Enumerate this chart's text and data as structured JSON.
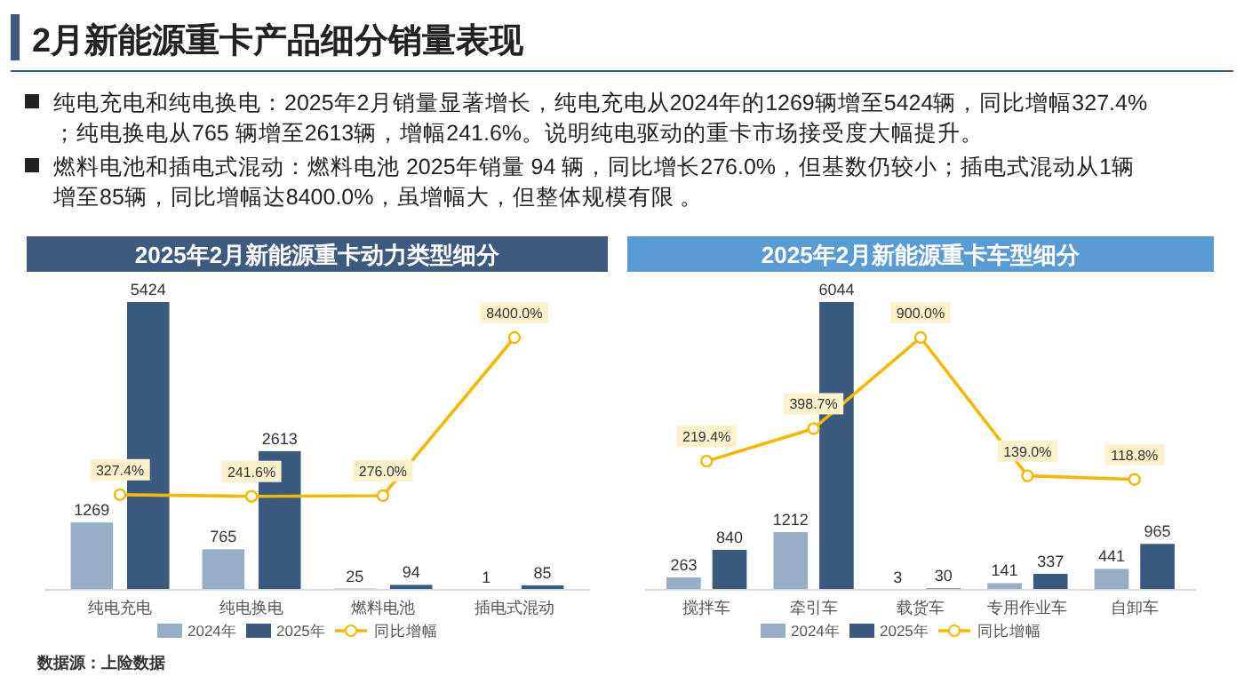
{
  "chart_data": [
    {
      "type": "other",
      "title": "2月新能源重卡产品细分销量表现",
      "annotations": [
        "纯电充电和纯电换电：2025年2月销量显著增长，纯电充电从2024年的1269辆增至5424辆，同比增幅327.4%；纯电换电从765 辆增至2613辆，增幅241.6%。说明纯电驱动的重卡市场接受度大幅提升。",
        "燃料电池和插电式混动：燃料电池 2025年销量 94 辆，同比增长276.0%，但基数仍较小；插电式混动从1辆增至85辆，同比增幅达8400.0%，虽增幅大，但整体规模有限 。"
      ]
    },
    {
      "type": "bar",
      "title": "2025年2月新能源重卡动力类型细分",
      "categories": [
        "纯电充电",
        "纯电换电",
        "燃料电池",
        "插电式混动"
      ],
      "data_labels": true,
      "legend": "bottom",
      "tick_labels": "x",
      "annotations": [
        "数据源：上险数据"
      ],
      "series": [
        {
          "name": "2024年",
          "color": "#97afc6",
          "values": [
            1269,
            765,
            25,
            1
          ]
        },
        {
          "name": "2025年",
          "color": "#3b5a7f",
          "values": [
            5424,
            2613,
            94,
            85
          ]
        },
        {
          "name": "同比增幅",
          "type": "line",
          "axis": "y2",
          "color": "#f5b800",
          "marker": "circle",
          "values": [
            327.4,
            241.6,
            276.0,
            8400.0
          ],
          "value_labels": [
            "327.4%",
            "241.6%",
            "276.0%",
            "8400.0%"
          ]
        }
      ]
    },
    {
      "type": "bar",
      "title": "2025年2月新能源重卡车型细分",
      "categories": [
        "搅拌车",
        "牵引车",
        "载货车",
        "专用作业车",
        "自卸车"
      ],
      "data_labels": true,
      "legend": "bottom",
      "tick_labels": "x",
      "series": [
        {
          "name": "2024年",
          "color": "#97afc6",
          "values": [
            263,
            1212,
            3,
            141,
            441
          ]
        },
        {
          "name": "2025年",
          "color": "#3b5a7f",
          "values": [
            840,
            6044,
            30,
            337,
            965
          ]
        },
        {
          "name": "同比增幅",
          "type": "line",
          "axis": "y2",
          "color": "#f5b800",
          "marker": "circle",
          "values": [
            219.4,
            398.7,
            900.0,
            139.0,
            118.8
          ],
          "value_labels": [
            "219.4%",
            "398.7%",
            "900.0%",
            "139.0%",
            "118.8%"
          ]
        }
      ]
    }
  ]
}
